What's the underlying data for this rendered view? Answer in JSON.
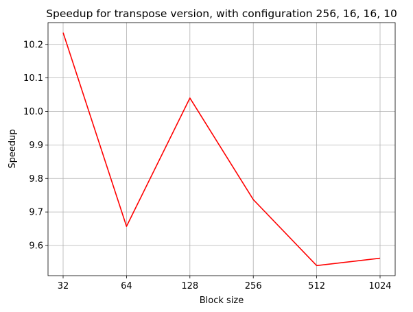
{
  "chart_data": {
    "type": "line",
    "title": "Speedup for transpose version, with configuration 256, 16, 16, 10",
    "xlabel": "Block size",
    "ylabel": "Speedup",
    "x": [
      "32",
      "64",
      "128",
      "256",
      "512",
      "1024"
    ],
    "x_scale": "log2",
    "series": [
      {
        "color": "#ff0000",
        "values": [
          10.235,
          9.657,
          10.04,
          9.737,
          9.54,
          9.562
        ]
      }
    ],
    "ylim": [
      9.51,
      10.265
    ],
    "yticks": [
      "9.6",
      "9.7",
      "9.8",
      "9.9",
      "10.0",
      "10.1",
      "10.2"
    ],
    "grid": true,
    "legend": "none"
  }
}
